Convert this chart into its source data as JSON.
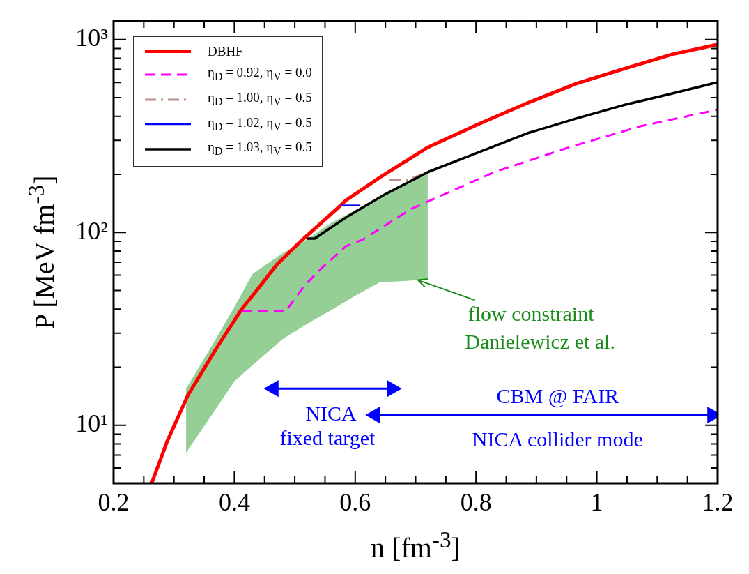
{
  "chart_data": {
    "type": "line",
    "xlabel": "n  [fm$^{-3}$]",
    "ylabel": "P  [MeV fm$^{-3}$]",
    "log": "y",
    "legend": "top left",
    "xlim": [
      0.2,
      1.2
    ],
    "ylim": [
      5,
      1250
    ],
    "xticks": [
      0.2,
      {
        "value": 0.25,
        "label": null
      },
      {
        "value": 0.3,
        "label": null
      },
      {
        "value": 0.35,
        "label": null
      },
      0.4,
      {
        "value": 0.45,
        "label": null
      },
      {
        "value": 0.5,
        "label": null
      },
      {
        "value": 0.55,
        "label": null
      },
      0.6,
      {
        "value": 0.65,
        "label": null
      },
      {
        "value": 0.7,
        "label": null
      },
      {
        "value": 0.75,
        "label": null
      },
      0.8,
      {
        "value": 0.85,
        "label": null
      },
      {
        "value": 0.9,
        "label": null
      },
      {
        "value": 0.95,
        "label": null
      },
      1,
      {
        "value": 1.05,
        "label": null
      },
      {
        "value": 1.1,
        "label": null
      },
      {
        "value": 1.15,
        "label": null
      },
      1.2
    ],
    "yticks": [
      {
        "value": 6,
        "label": null
      },
      {
        "value": 7,
        "label": null
      },
      {
        "value": 8,
        "label": null
      },
      {
        "value": 9,
        "label": null
      },
      {
        "value": 10,
        "label": "10¹"
      },
      {
        "value": 20,
        "label": null
      },
      {
        "value": 30,
        "label": null
      },
      {
        "value": 40,
        "label": null
      },
      {
        "value": 50,
        "label": null
      },
      {
        "value": 60,
        "label": null
      },
      {
        "value": 70,
        "label": null
      },
      {
        "value": 80,
        "label": null
      },
      {
        "value": 90,
        "label": null
      },
      {
        "value": 100,
        "label": "10²"
      },
      {
        "value": 200,
        "label": null
      },
      {
        "value": 300,
        "label": null
      },
      {
        "value": 400,
        "label": null
      },
      {
        "value": 500,
        "label": null
      },
      {
        "value": 600,
        "label": null
      },
      {
        "value": 700,
        "label": null
      },
      {
        "value": 800,
        "label": null
      },
      {
        "value": 900,
        "label": null
      },
      {
        "value": 1000,
        "label": "10³"
      }
    ],
    "series": [
      {
        "name": "DBHF",
        "color": "#ff0000",
        "line_style": "solid",
        "marker": "none",
        "x": [
          0.263,
          0.289,
          0.323,
          0.37,
          0.412,
          0.439,
          0.47,
          0.508,
          0.569,
          0.585,
          0.643,
          0.719,
          0.802,
          0.885,
          0.966,
          1.044,
          1.125,
          1.2
        ],
        "values": [
          5,
          8.3,
          14.3,
          25,
          40,
          51,
          68,
          89,
          132,
          147,
          195,
          275,
          362,
          469,
          591,
          705,
          839,
          944
        ]
      },
      {
        "name": "η$_{D}$ = 0.92, η$_{V}$ = 0.0",
        "color": "#ff00ff",
        "line_style": "dashed",
        "marker": "none",
        "x": [
          0.412,
          0.485,
          0.516,
          0.546,
          0.585,
          0.613,
          0.692,
          0.721,
          0.831,
          0.952,
          1.073,
          1.2
        ],
        "values": [
          39,
          39,
          53,
          66,
          85,
          92,
          132,
          145,
          206,
          275,
          356,
          433
        ]
      },
      {
        "name": "η$_{D}$ = 1.00, η$_{V}$ = 0.5",
        "color": "#bc8f8f",
        "line_style": "dashdot",
        "marker": "none",
        "x": [
          0.657,
          0.688,
          0.721,
          0.802,
          0.885,
          0.966,
          1.044,
          1.125,
          1.2
        ],
        "values": [
          188,
          188,
          206,
          259,
          327,
          390,
          457,
          526,
          601
        ]
      },
      {
        "name": "η$_{D}$ = 1.02, η$_{V}$ = 0.5",
        "color": "#0000ff",
        "line_style": "solid",
        "marker": "none",
        "x": [
          0.577,
          0.608
        ],
        "values": [
          138,
          138
        ]
      },
      {
        "name": "η$_{D}$ = 1.03, η$_{V}$ = 0.5",
        "color": "#000000",
        "line_style": "solid",
        "marker": "none",
        "x": [
          0.52,
          0.533,
          0.589,
          0.65,
          0.721,
          0.802,
          0.885,
          0.966,
          1.044,
          1.125,
          1.2
        ],
        "values": [
          93,
          93,
          122,
          158,
          206,
          259,
          327,
          390,
          457,
          526,
          601
        ]
      },
      {
        "type": "area",
        "color": "#2ca02c",
        "x": [
          0.32,
          0.36,
          0.4,
          0.43,
          0.48,
          0.52,
          0.56,
          0.6,
          0.64,
          0.68,
          0.72
        ],
        "values": [
          null,
          null,
          null,
          null,
          null,
          null,
          null,
          null,
          null,
          null,
          null
        ],
        "lower": [
          7.2,
          11,
          16.9,
          20.5,
          28,
          33.5,
          39.5,
          47,
          55,
          56,
          57
        ],
        "upper": [
          15.5,
          25,
          41,
          61,
          78,
          92,
          112,
          130,
          150,
          175,
          206
        ]
      },
      {
        "color": "#0000ff",
        "line_style": "solid",
        "marker": "triangle",
        "x": [
          0.465,
          0.661
        ],
        "values": [
          15.5,
          15.5
        ]
      },
      {
        "color": "#0000ff",
        "line_style": "solid",
        "marker": "triangle",
        "x": [
          0.633,
          1.191
        ],
        "values": [
          11.3,
          11.3
        ]
      }
    ],
    "annotations": [
      {
        "text": "flow constraint",
        "x": 0.704,
        "y": 56.6
      },
      "Danielewicz et al.",
      "NICA",
      "fixed target",
      "CBM @ FAIR",
      "NICA collider mode"
    ]
  }
}
